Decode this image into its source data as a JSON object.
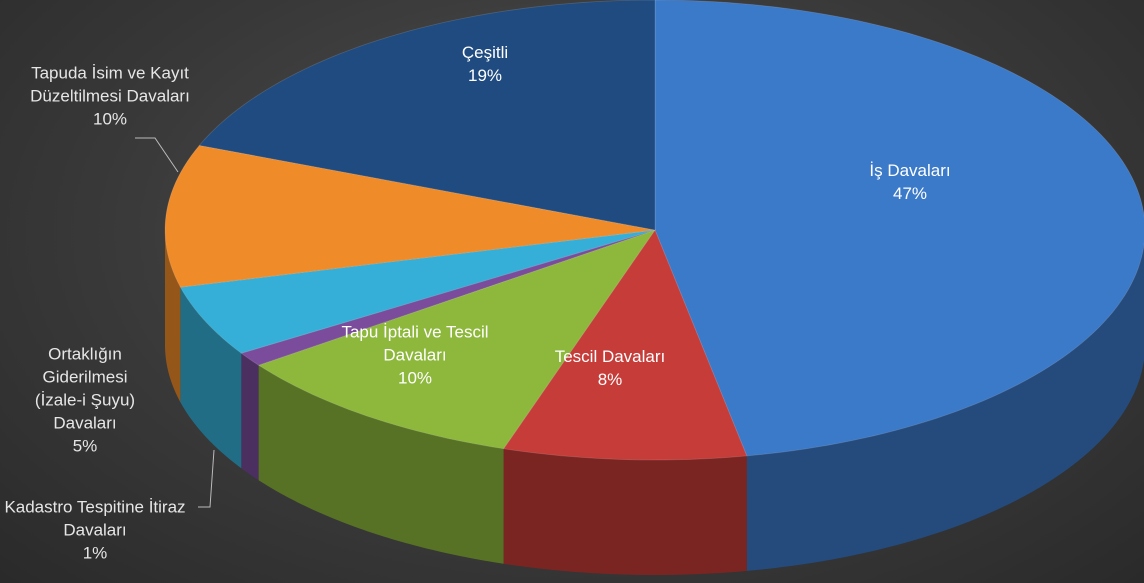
{
  "chart_data": {
    "type": "pie3d",
    "categories": [
      "İş Davaları",
      "Tescil Davaları",
      "Tapu İptali ve Tescil Davaları",
      "Kadastro Tespitine İtiraz Davaları",
      "Ortaklığın Giderilmesi (İzale-i Şuyu) Davaları",
      "Tapuda İsim ve Kayıt Düzeltilmesi Davaları",
      "Çeşitli"
    ],
    "values": [
      47,
      8,
      10,
      1,
      5,
      10,
      19
    ],
    "value_labels": [
      "47%",
      "8%",
      "10%",
      "1%",
      "5%",
      "10%",
      "19%"
    ],
    "colors": [
      "#3b79c9",
      "#c63c39",
      "#8db83c",
      "#7b4c9c",
      "#35afd8",
      "#f08b29",
      "#1f4b80"
    ]
  }
}
